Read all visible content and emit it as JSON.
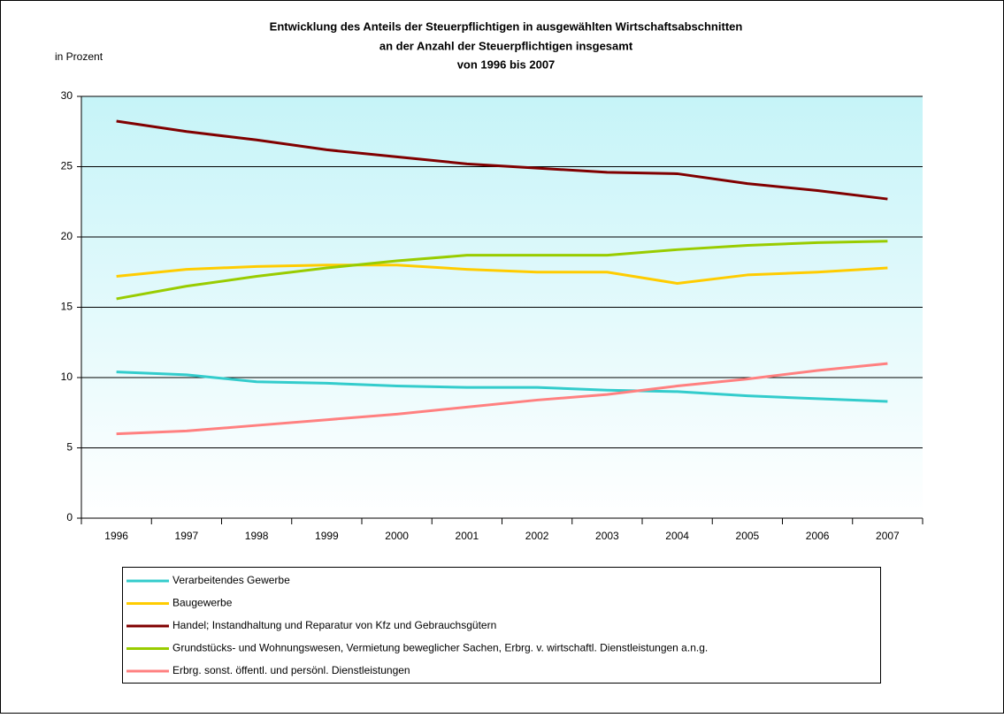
{
  "chart_data": {
    "type": "line",
    "title": [
      "Entwicklung des Anteils der Steuerpflichtigen in ausgewählten Wirtschaftsabschnitten",
      "an der Anzahl der Steuerpflichtigen insgesamt",
      "von 1996 bis 2007"
    ],
    "y_label": "in Prozent",
    "categories": [
      "1996",
      "1997",
      "1998",
      "1999",
      "2000",
      "2001",
      "2002",
      "2003",
      "2004",
      "2005",
      "2006",
      "2007"
    ],
    "series": [
      {
        "name": "Verarbeitendes Gewerbe",
        "color": "#33cccc",
        "values": [
          10.4,
          10.2,
          9.7,
          9.6,
          9.4,
          9.3,
          9.3,
          9.1,
          9.0,
          8.7,
          8.5,
          8.3
        ]
      },
      {
        "name": "Baugewerbe",
        "color": "#ffcc00",
        "values": [
          17.2,
          17.7,
          17.9,
          18.0,
          18.0,
          17.7,
          17.5,
          17.5,
          16.7,
          17.3,
          17.5,
          17.8
        ]
      },
      {
        "name": "Handel; Instandhaltung und Reparatur von Kfz und Gebrauchsgütern",
        "color": "#800000",
        "values": [
          28.24,
          27.5,
          26.9,
          26.2,
          25.7,
          25.2,
          24.9,
          24.6,
          24.5,
          23.8,
          23.3,
          22.7
        ]
      },
      {
        "name": "Grundstücks- und Wohnungswesen, Vermietung beweglicher Sachen, Erbrg. v. wirtschaftl. Dienstleistungen a.n.g.",
        "color": "#99cc00",
        "values": [
          15.6,
          16.5,
          17.2,
          17.8,
          18.3,
          18.7,
          18.7,
          18.7,
          19.1,
          19.4,
          19.6,
          19.7
        ]
      },
      {
        "name": "Erbrg. sonst. öffentl. und persönl. Dienstleistungen",
        "color": "#ff8080",
        "values": [
          6.0,
          6.2,
          6.6,
          7.0,
          7.4,
          7.9,
          8.4,
          8.8,
          9.4,
          9.9,
          10.5,
          11.0
        ]
      }
    ],
    "ylim": [
      0,
      30
    ],
    "yticks": [
      0,
      5,
      10,
      15,
      20,
      25,
      30
    ],
    "grid": true
  }
}
